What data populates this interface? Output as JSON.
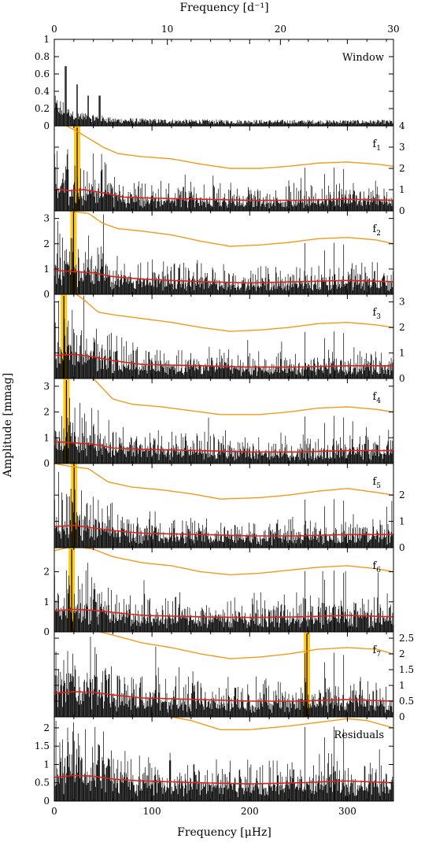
{
  "top_axis": {
    "title": "Frequency [d⁻¹]",
    "ticks": [
      0,
      10,
      20,
      30
    ],
    "tick_labels": [
      "0",
      "10",
      "20",
      "30"
    ],
    "range": [
      0,
      30
    ]
  },
  "bottom_axis": {
    "title": "Frequency [μHz]",
    "ticks": [
      0,
      100,
      200,
      300
    ],
    "tick_labels": [
      "0",
      "100",
      "200",
      "300"
    ],
    "range": [
      0,
      347.2
    ]
  },
  "y_axis_title": "Amplitude [mmag]",
  "colors": {
    "noise": "#000000",
    "significance_curve": "#f39a1a",
    "mean_noise_curve": "#e0201b",
    "highlight": "#ffc400"
  },
  "chart_data": {
    "type": "line",
    "description_of_panels": "stacked amplitude spectra",
    "panels": [
      {
        "id": "window",
        "label": "Window",
        "label_sub": "",
        "ylim": [
          0,
          1.0
        ],
        "yaxis_side": "left",
        "ticks": [
          0,
          0.2,
          0.4,
          0.6,
          0.8,
          1
        ],
        "tick_labels": [
          "0",
          "0.2",
          "0.4",
          "0.6",
          "0.8",
          "1"
        ],
        "peak_freq": null,
        "orange": [],
        "red": []
      },
      {
        "id": "f1",
        "label": "f",
        "label_sub": "1",
        "ylim": [
          0,
          4.0
        ],
        "yaxis_side": "right",
        "ticks": [
          0,
          1,
          2,
          3,
          4
        ],
        "tick_labels": [
          "0",
          "1",
          "2",
          "3",
          "4"
        ],
        "peak_freq": 23.4,
        "orange": [
          [
            0,
            4.3
          ],
          [
            25,
            3.7
          ],
          [
            50,
            3.0
          ],
          [
            65,
            2.7
          ],
          [
            90,
            2.55
          ],
          [
            120,
            2.45
          ],
          [
            150,
            2.2
          ],
          [
            180,
            2.0
          ],
          [
            210,
            2.0
          ],
          [
            240,
            2.1
          ],
          [
            270,
            2.25
          ],
          [
            300,
            2.3
          ],
          [
            330,
            2.2
          ],
          [
            347,
            2.1
          ]
        ],
        "red": [
          [
            0,
            1.05
          ],
          [
            15,
            0.95
          ],
          [
            30,
            1.0
          ],
          [
            50,
            0.85
          ],
          [
            70,
            0.65
          ],
          [
            100,
            0.6
          ],
          [
            150,
            0.55
          ],
          [
            200,
            0.5
          ],
          [
            250,
            0.5
          ],
          [
            300,
            0.55
          ],
          [
            347,
            0.5
          ]
        ]
      },
      {
        "id": "f2",
        "label": "f",
        "label_sub": "2",
        "ylim": [
          0,
          3.3
        ],
        "yaxis_side": "left",
        "ticks": [
          0,
          1,
          2,
          3
        ],
        "tick_labels": [
          "0",
          "1",
          "2",
          "3"
        ],
        "peak_freq": 19.7,
        "orange": [
          [
            0,
            3.5
          ],
          [
            15,
            3.3
          ],
          [
            35,
            3.2
          ],
          [
            50,
            2.8
          ],
          [
            65,
            2.6
          ],
          [
            90,
            2.5
          ],
          [
            120,
            2.35
          ],
          [
            150,
            2.1
          ],
          [
            180,
            1.9
          ],
          [
            210,
            1.95
          ],
          [
            240,
            2.05
          ],
          [
            270,
            2.2
          ],
          [
            300,
            2.25
          ],
          [
            330,
            2.15
          ],
          [
            347,
            2.0
          ]
        ],
        "red": [
          [
            0,
            0.95
          ],
          [
            20,
            0.9
          ],
          [
            40,
            0.85
          ],
          [
            60,
            0.7
          ],
          [
            90,
            0.6
          ],
          [
            150,
            0.5
          ],
          [
            200,
            0.45
          ],
          [
            250,
            0.5
          ],
          [
            300,
            0.55
          ],
          [
            347,
            0.5
          ]
        ]
      },
      {
        "id": "f3",
        "label": "f",
        "label_sub": "3",
        "ylim": [
          0,
          3.3
        ],
        "yaxis_side": "right",
        "ticks": [
          0,
          1,
          2,
          3
        ],
        "tick_labels": [
          "0",
          "1",
          "2",
          "3"
        ],
        "peak_freq": 9.8,
        "orange": [
          [
            0,
            3.6
          ],
          [
            15,
            3.5
          ],
          [
            30,
            3.1
          ],
          [
            45,
            2.6
          ],
          [
            60,
            2.5
          ],
          [
            90,
            2.35
          ],
          [
            120,
            2.2
          ],
          [
            150,
            2.0
          ],
          [
            180,
            1.85
          ],
          [
            210,
            1.9
          ],
          [
            240,
            2.0
          ],
          [
            270,
            2.15
          ],
          [
            300,
            2.2
          ],
          [
            330,
            2.1
          ],
          [
            347,
            2.0
          ]
        ],
        "red": [
          [
            0,
            0.9
          ],
          [
            20,
            0.95
          ],
          [
            40,
            0.85
          ],
          [
            60,
            0.7
          ],
          [
            90,
            0.55
          ],
          [
            150,
            0.5
          ],
          [
            200,
            0.45
          ],
          [
            250,
            0.45
          ],
          [
            300,
            0.5
          ],
          [
            347,
            0.5
          ]
        ]
      },
      {
        "id": "f4",
        "label": "f",
        "label_sub": "4",
        "ylim": [
          0,
          3.3
        ],
        "yaxis_side": "left",
        "ticks": [
          0,
          1,
          2,
          3
        ],
        "tick_labels": [
          "0",
          "1",
          "2",
          "3"
        ],
        "peak_freq": 12.4,
        "orange": [
          [
            0,
            3.6
          ],
          [
            20,
            3.4
          ],
          [
            40,
            3.3
          ],
          [
            60,
            2.5
          ],
          [
            80,
            2.3
          ],
          [
            110,
            2.2
          ],
          [
            140,
            2.05
          ],
          [
            170,
            1.9
          ],
          [
            210,
            1.9
          ],
          [
            240,
            2.0
          ],
          [
            270,
            2.15
          ],
          [
            300,
            2.2
          ],
          [
            330,
            2.1
          ],
          [
            347,
            2.0
          ]
        ],
        "red": [
          [
            0,
            0.85
          ],
          [
            20,
            0.8
          ],
          [
            40,
            0.75
          ],
          [
            60,
            0.6
          ],
          [
            90,
            0.55
          ],
          [
            150,
            0.5
          ],
          [
            200,
            0.45
          ],
          [
            250,
            0.45
          ],
          [
            300,
            0.5
          ],
          [
            347,
            0.5
          ]
        ]
      },
      {
        "id": "f5",
        "label": "f",
        "label_sub": "5",
        "ylim": [
          0,
          3.2
        ],
        "yaxis_side": "right",
        "ticks": [
          0,
          1,
          2
        ],
        "tick_labels": [
          "0",
          "1",
          "2"
        ],
        "peak_freq": 20.3,
        "orange": [
          [
            0,
            3.2
          ],
          [
            15,
            3.1
          ],
          [
            35,
            3.0
          ],
          [
            55,
            2.5
          ],
          [
            80,
            2.3
          ],
          [
            110,
            2.2
          ],
          [
            140,
            2.05
          ],
          [
            170,
            1.85
          ],
          [
            210,
            1.9
          ],
          [
            240,
            2.0
          ],
          [
            270,
            2.15
          ],
          [
            300,
            2.25
          ],
          [
            330,
            2.1
          ],
          [
            347,
            2.0
          ]
        ],
        "red": [
          [
            0,
            0.8
          ],
          [
            20,
            0.85
          ],
          [
            40,
            0.75
          ],
          [
            60,
            0.65
          ],
          [
            90,
            0.55
          ],
          [
            150,
            0.5
          ],
          [
            200,
            0.45
          ],
          [
            250,
            0.45
          ],
          [
            300,
            0.5
          ],
          [
            347,
            0.5
          ]
        ]
      },
      {
        "id": "f6",
        "label": "f",
        "label_sub": "6",
        "ylim": [
          0,
          2.8
        ],
        "yaxis_side": "left",
        "ticks": [
          0,
          1,
          2
        ],
        "tick_labels": [
          "0",
          "1",
          "2"
        ],
        "peak_freq": 17.8,
        "orange": [
          [
            0,
            2.7
          ],
          [
            20,
            2.85
          ],
          [
            40,
            2.75
          ],
          [
            60,
            2.5
          ],
          [
            90,
            2.3
          ],
          [
            120,
            2.2
          ],
          [
            150,
            2.0
          ],
          [
            180,
            1.9
          ],
          [
            210,
            1.95
          ],
          [
            240,
            2.05
          ],
          [
            270,
            2.15
          ],
          [
            300,
            2.2
          ],
          [
            330,
            2.1
          ],
          [
            347,
            2.0
          ]
        ],
        "red": [
          [
            0,
            0.7
          ],
          [
            20,
            0.75
          ],
          [
            40,
            0.72
          ],
          [
            60,
            0.65
          ],
          [
            90,
            0.55
          ],
          [
            150,
            0.5
          ],
          [
            200,
            0.48
          ],
          [
            250,
            0.5
          ],
          [
            300,
            0.55
          ],
          [
            347,
            0.5
          ]
        ]
      },
      {
        "id": "f7",
        "label": "f",
        "label_sub": "7",
        "ylim": [
          0,
          2.7
        ],
        "yaxis_side": "right",
        "ticks": [
          0,
          0.5,
          1,
          1.5,
          2,
          2.5
        ],
        "tick_labels": [
          "0",
          "0.5",
          "1",
          "1.5",
          "2",
          "2.5"
        ],
        "peak_freq": 258.6,
        "orange": [
          [
            0,
            2.7
          ],
          [
            20,
            2.8
          ],
          [
            40,
            2.75
          ],
          [
            60,
            2.6
          ],
          [
            90,
            2.35
          ],
          [
            120,
            2.2
          ],
          [
            150,
            2.0
          ],
          [
            180,
            1.85
          ],
          [
            210,
            1.9
          ],
          [
            240,
            2.0
          ],
          [
            270,
            2.15
          ],
          [
            300,
            2.2
          ],
          [
            330,
            2.15
          ],
          [
            347,
            2.0
          ]
        ],
        "red": [
          [
            0,
            0.75
          ],
          [
            20,
            0.8
          ],
          [
            40,
            0.78
          ],
          [
            60,
            0.7
          ],
          [
            90,
            0.6
          ],
          [
            150,
            0.55
          ],
          [
            200,
            0.5
          ],
          [
            250,
            0.5
          ],
          [
            300,
            0.55
          ],
          [
            347,
            0.5
          ]
        ]
      },
      {
        "id": "residuals",
        "label": "Residuals",
        "label_sub": "",
        "ylim": [
          0,
          2.3
        ],
        "yaxis_side": "left",
        "ticks": [
          0,
          0.5,
          1,
          1.5,
          2
        ],
        "tick_labels": [
          "0",
          "0.5",
          "1",
          "1.5",
          "2"
        ],
        "peak_freq": null,
        "orange": [
          [
            100,
            2.4
          ],
          [
            140,
            2.2
          ],
          [
            170,
            1.95
          ],
          [
            200,
            1.95
          ],
          [
            240,
            2.05
          ],
          [
            270,
            2.15
          ],
          [
            300,
            2.25
          ],
          [
            320,
            2.2
          ],
          [
            347,
            2.0
          ]
        ],
        "red": [
          [
            0,
            0.65
          ],
          [
            20,
            0.7
          ],
          [
            40,
            0.68
          ],
          [
            60,
            0.6
          ],
          [
            90,
            0.55
          ],
          [
            150,
            0.5
          ],
          [
            200,
            0.47
          ],
          [
            250,
            0.5
          ],
          [
            300,
            0.55
          ],
          [
            347,
            0.5
          ]
        ]
      }
    ]
  }
}
